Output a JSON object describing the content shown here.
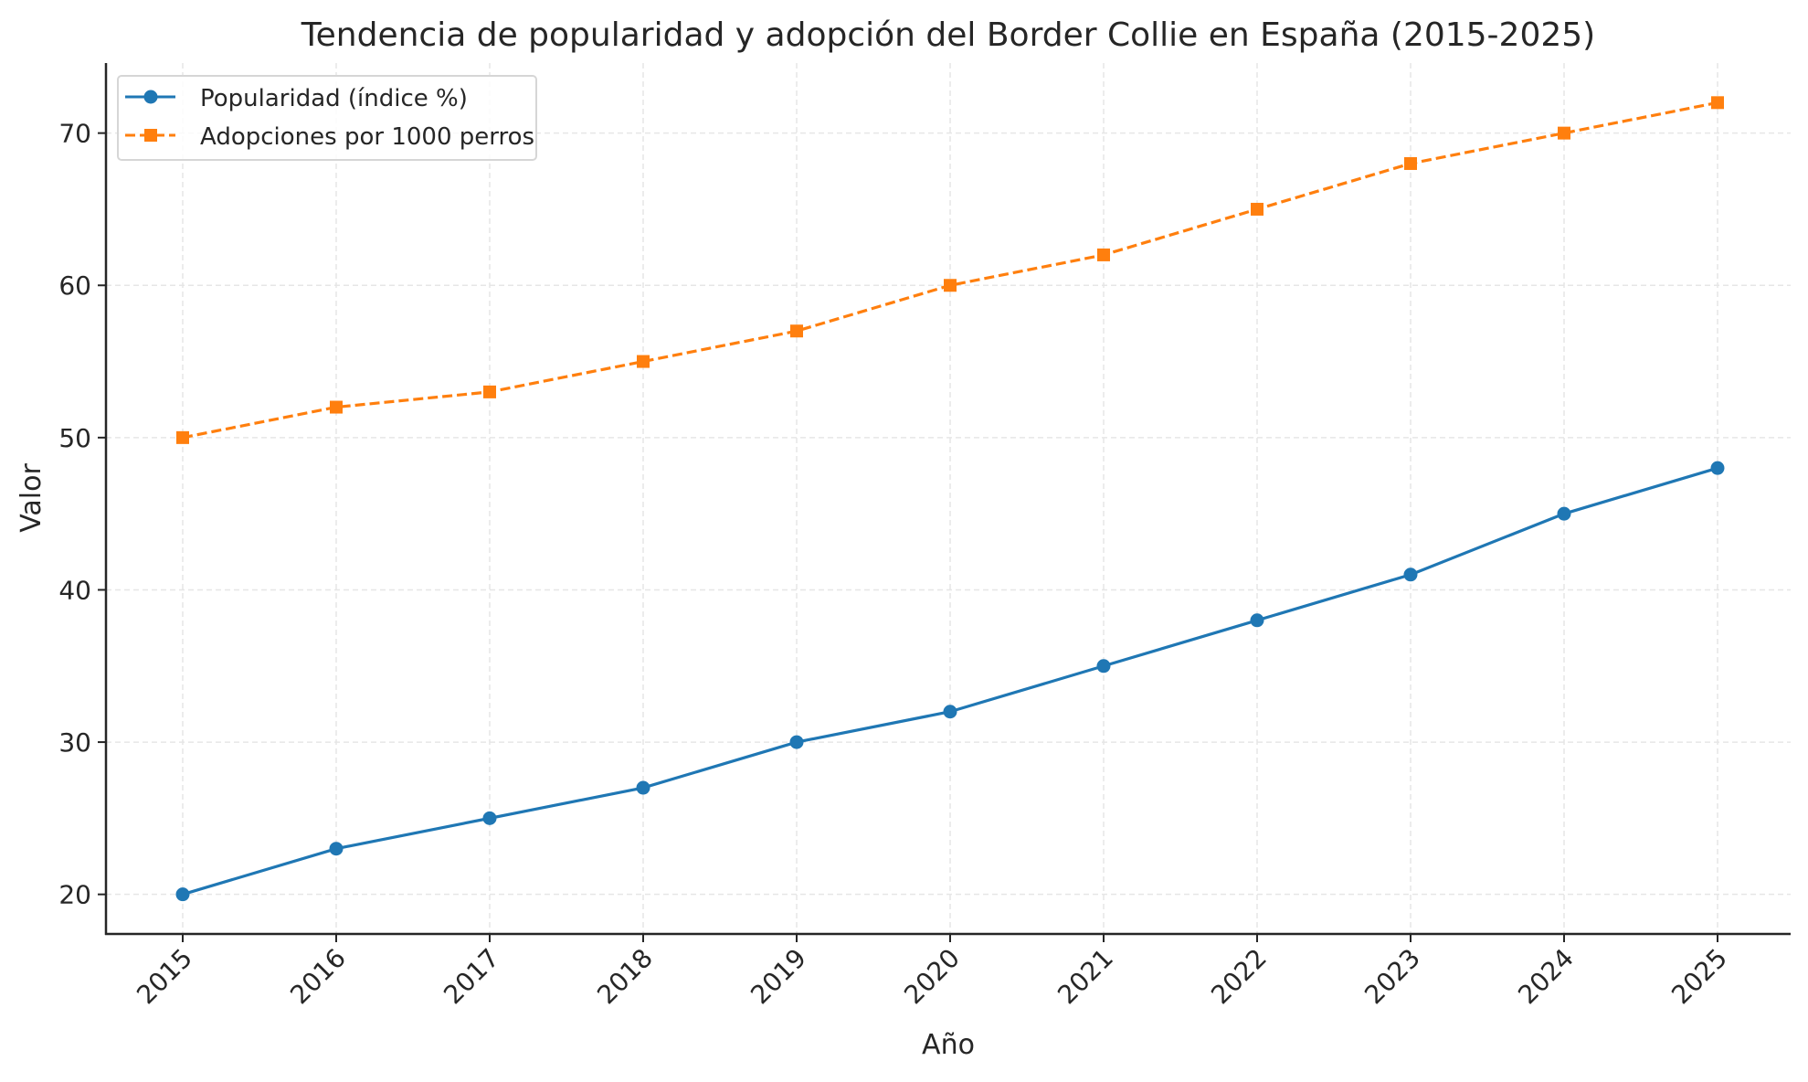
{
  "chart_data": {
    "type": "line",
    "title": "Tendencia de popularidad y adopción del Border Collie en España (2015-2025)",
    "xlabel": "Año",
    "ylabel": "Valor",
    "x": [
      2015,
      2016,
      2017,
      2018,
      2019,
      2020,
      2021,
      2022,
      2023,
      2024,
      2025
    ],
    "x_tick_labels": [
      "2015",
      "2016",
      "2017",
      "2018",
      "2019",
      "2020",
      "2021",
      "2022",
      "2023",
      "2024",
      "2025"
    ],
    "y_ticks": [
      20,
      30,
      40,
      50,
      60,
      70
    ],
    "y_tick_labels": [
      "20",
      "30",
      "40",
      "50",
      "60",
      "70"
    ],
    "ylim": [
      17.4,
      74.6
    ],
    "grid": true,
    "legend_position": "top-left",
    "series": [
      {
        "name": "Popularidad (índice %)",
        "color": "#1f77b4",
        "marker": "circle",
        "linestyle": "solid",
        "values": [
          20,
          23,
          25,
          27,
          30,
          32,
          35,
          38,
          41,
          45,
          48
        ]
      },
      {
        "name": "Adopciones por 1000 perros",
        "color": "#ff7f0e",
        "marker": "square",
        "linestyle": "dashed",
        "values": [
          50,
          52,
          53,
          55,
          57,
          60,
          62,
          65,
          68,
          70,
          72
        ]
      }
    ]
  }
}
